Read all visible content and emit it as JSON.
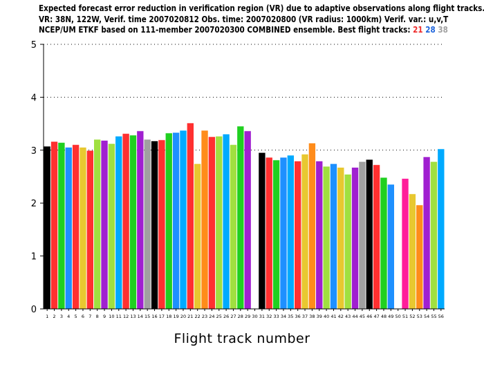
{
  "header": {
    "line1": "Expected forecast error reduction in verification region (VR) due to adaptive observations along flight tracks.",
    "line2": "VR: 38N, 122W, Verif. time 2007020812 Obs. time: 2007020800 (VR radius: 1000km)  Verif. var.: u,v,T",
    "line3_prefix": "NCEP/UM ETKF based on 111-member 2007020300 COMBINED ensemble.  Best flight tracks:",
    "best_tracks": [
      {
        "number": "21",
        "color": "#ee2c2c"
      },
      {
        "number": "28",
        "color": "#1e64dc"
      },
      {
        "number": "38",
        "color": "#a0a0a0"
      }
    ]
  },
  "chart_data": {
    "type": "bar",
    "title": "Expected forecast error reduction in verification region (VR) due to adaptive observations along flight tracks.",
    "xlabel": "Flight track number",
    "ylabel": "",
    "ylim": [
      0,
      5
    ],
    "yticks": [
      "0",
      "1",
      "2",
      "3",
      "4",
      "5"
    ],
    "grid": "horizontal dotted at y=3,4,5",
    "categories": [
      "1",
      "2",
      "3",
      "4",
      "5",
      "6",
      "7",
      "8",
      "9",
      "10",
      "11",
      "12",
      "13",
      "14",
      "15",
      "16",
      "17",
      "18",
      "19",
      "20",
      "21",
      "22",
      "23",
      "24",
      "25",
      "26",
      "27",
      "28",
      "29",
      "30",
      "31",
      "32",
      "33",
      "34",
      "35",
      "36",
      "37",
      "38",
      "39",
      "40",
      "41",
      "42",
      "43",
      "44",
      "45",
      "46",
      "47",
      "48",
      "49",
      "50",
      "51",
      "52",
      "53",
      "54",
      "55",
      "56"
    ],
    "values": [
      3.07,
      3.16,
      3.14,
      3.05,
      3.1,
      3.05,
      2.99,
      3.2,
      3.18,
      3.12,
      3.26,
      3.31,
      3.28,
      3.36,
      3.2,
      3.17,
      3.19,
      3.32,
      3.33,
      3.37,
      3.51,
      2.74,
      3.37,
      3.25,
      3.26,
      3.3,
      3.1,
      3.45,
      3.36,
      0,
      2.95,
      2.86,
      2.81,
      2.86,
      2.9,
      2.79,
      2.92,
      3.13,
      2.79,
      2.69,
      2.74,
      2.67,
      2.54,
      2.67,
      2.78,
      2.82,
      2.72,
      2.48,
      2.35,
      0,
      2.46,
      2.17,
      1.96,
      2.87,
      2.78,
      3.02
    ],
    "colors": [
      "#000000",
      "#ff3030",
      "#20d020",
      "#1e90ff",
      "#ff3030",
      "#e8c830",
      "#ff3030",
      "#a0e040",
      "#a020d0",
      "#a0e040",
      "#00aaff",
      "#ff3030",
      "#20d020",
      "#a020d0",
      "#a0a0a0",
      "#000000",
      "#ff3030",
      "#20d020",
      "#1e90ff",
      "#00aaff",
      "#ff3030",
      "#e8c830",
      "#ff8c1a",
      "#ff3030",
      "#a0e040",
      "#00aaff",
      "#a0e040",
      "#20d020",
      "#a020d0",
      "#ffffff",
      "#000000",
      "#ff3030",
      "#20d020",
      "#1e90ff",
      "#00aaff",
      "#ff3030",
      "#e8c830",
      "#ff8c1a",
      "#a020d0",
      "#a0e040",
      "#1e90ff",
      "#e8c830",
      "#a0e040",
      "#a020d0",
      "#a0a0a0",
      "#000000",
      "#ff3030",
      "#20d020",
      "#1e90ff",
      "#ffffff",
      "#ff1e9a",
      "#e8c830",
      "#ff8c1a",
      "#a020d0",
      "#a0e040",
      "#00aaff"
    ]
  }
}
